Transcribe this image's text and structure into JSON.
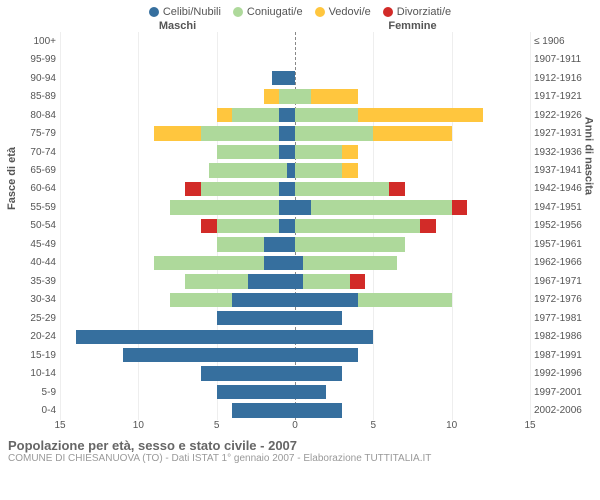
{
  "legend": [
    {
      "label": "Celibi/Nubili",
      "color": "#366f9e"
    },
    {
      "label": "Coniugati/e",
      "color": "#aed99b"
    },
    {
      "label": "Vedovi/e",
      "color": "#ffc63e"
    },
    {
      "label": "Divorziati/e",
      "color": "#d22b28"
    }
  ],
  "header_left": "Maschi",
  "header_right": "Femmine",
  "ylabel_left": "Fasce di età",
  "ylabel_right": "Anni di nascita",
  "title": "Popolazione per età, sesso e stato civile - 2007",
  "subtitle": "COMUNE DI CHIESANUOVA (TO) - Dati ISTAT 1° gennaio 2007 - Elaborazione TUTTITALIA.IT",
  "x_max": 15,
  "x_ticks": [
    15,
    10,
    5,
    0,
    5,
    10,
    15
  ],
  "colors": {
    "celibi": "#366f9e",
    "coniugati": "#aed99b",
    "vedovi": "#ffc63e",
    "divorziati": "#d22b28",
    "grid": "#eeeeee",
    "center": "#888888"
  },
  "rows": [
    {
      "age": "100+",
      "birth": "≤ 1906",
      "m": {
        "c": 0,
        "j": 0,
        "v": 0,
        "d": 0
      },
      "f": {
        "c": 0,
        "j": 0,
        "v": 0,
        "d": 0
      }
    },
    {
      "age": "95-99",
      "birth": "1907-1911",
      "m": {
        "c": 0,
        "j": 0,
        "v": 0,
        "d": 0
      },
      "f": {
        "c": 0,
        "j": 0,
        "v": 0,
        "d": 0
      }
    },
    {
      "age": "90-94",
      "birth": "1912-1916",
      "m": {
        "c": 1.5,
        "j": 0,
        "v": 0,
        "d": 0
      },
      "f": {
        "c": 0,
        "j": 0,
        "v": 0,
        "d": 0
      }
    },
    {
      "age": "85-89",
      "birth": "1917-1921",
      "m": {
        "c": 0,
        "j": 1,
        "v": 1,
        "d": 0
      },
      "f": {
        "c": 0,
        "j": 1,
        "v": 3,
        "d": 0
      }
    },
    {
      "age": "80-84",
      "birth": "1922-1926",
      "m": {
        "c": 1,
        "j": 3,
        "v": 1,
        "d": 0
      },
      "f": {
        "c": 0,
        "j": 4,
        "v": 8,
        "d": 0
      }
    },
    {
      "age": "75-79",
      "birth": "1927-1931",
      "m": {
        "c": 1,
        "j": 5,
        "v": 3,
        "d": 0
      },
      "f": {
        "c": 0,
        "j": 5,
        "v": 5,
        "d": 0
      }
    },
    {
      "age": "70-74",
      "birth": "1932-1936",
      "m": {
        "c": 1,
        "j": 4,
        "v": 0,
        "d": 0
      },
      "f": {
        "c": 0,
        "j": 3,
        "v": 1,
        "d": 0
      }
    },
    {
      "age": "65-69",
      "birth": "1937-1941",
      "m": {
        "c": 0.5,
        "j": 5,
        "v": 0,
        "d": 0
      },
      "f": {
        "c": 0,
        "j": 3,
        "v": 1,
        "d": 0
      }
    },
    {
      "age": "60-64",
      "birth": "1942-1946",
      "m": {
        "c": 1,
        "j": 5,
        "v": 0,
        "d": 1
      },
      "f": {
        "c": 0,
        "j": 6,
        "v": 0,
        "d": 1
      }
    },
    {
      "age": "55-59",
      "birth": "1947-1951",
      "m": {
        "c": 1,
        "j": 7,
        "v": 0,
        "d": 0
      },
      "f": {
        "c": 1,
        "j": 9,
        "v": 0,
        "d": 1
      }
    },
    {
      "age": "50-54",
      "birth": "1952-1956",
      "m": {
        "c": 1,
        "j": 4,
        "v": 0,
        "d": 1
      },
      "f": {
        "c": 0,
        "j": 8,
        "v": 0,
        "d": 1
      }
    },
    {
      "age": "45-49",
      "birth": "1957-1961",
      "m": {
        "c": 2,
        "j": 3,
        "v": 0,
        "d": 0
      },
      "f": {
        "c": 0,
        "j": 7,
        "v": 0,
        "d": 0
      }
    },
    {
      "age": "40-44",
      "birth": "1962-1966",
      "m": {
        "c": 2,
        "j": 7,
        "v": 0,
        "d": 0
      },
      "f": {
        "c": 0.5,
        "j": 6,
        "v": 0,
        "d": 0
      }
    },
    {
      "age": "35-39",
      "birth": "1967-1971",
      "m": {
        "c": 3,
        "j": 4,
        "v": 0,
        "d": 0
      },
      "f": {
        "c": 0.5,
        "j": 3,
        "v": 0,
        "d": 1
      }
    },
    {
      "age": "30-34",
      "birth": "1972-1976",
      "m": {
        "c": 4,
        "j": 4,
        "v": 0,
        "d": 0
      },
      "f": {
        "c": 4,
        "j": 6,
        "v": 0,
        "d": 0
      }
    },
    {
      "age": "25-29",
      "birth": "1977-1981",
      "m": {
        "c": 5,
        "j": 0,
        "v": 0,
        "d": 0
      },
      "f": {
        "c": 3,
        "j": 0,
        "v": 0,
        "d": 0
      }
    },
    {
      "age": "20-24",
      "birth": "1982-1986",
      "m": {
        "c": 14,
        "j": 0,
        "v": 0,
        "d": 0
      },
      "f": {
        "c": 5,
        "j": 0,
        "v": 0,
        "d": 0
      }
    },
    {
      "age": "15-19",
      "birth": "1987-1991",
      "m": {
        "c": 11,
        "j": 0,
        "v": 0,
        "d": 0
      },
      "f": {
        "c": 4,
        "j": 0,
        "v": 0,
        "d": 0
      }
    },
    {
      "age": "10-14",
      "birth": "1992-1996",
      "m": {
        "c": 6,
        "j": 0,
        "v": 0,
        "d": 0
      },
      "f": {
        "c": 3,
        "j": 0,
        "v": 0,
        "d": 0
      }
    },
    {
      "age": "5-9",
      "birth": "1997-2001",
      "m": {
        "c": 5,
        "j": 0,
        "v": 0,
        "d": 0
      },
      "f": {
        "c": 2,
        "j": 0,
        "v": 0,
        "d": 0
      }
    },
    {
      "age": "0-4",
      "birth": "2002-2006",
      "m": {
        "c": 4,
        "j": 0,
        "v": 0,
        "d": 0
      },
      "f": {
        "c": 3,
        "j": 0,
        "v": 0,
        "d": 0
      }
    }
  ]
}
